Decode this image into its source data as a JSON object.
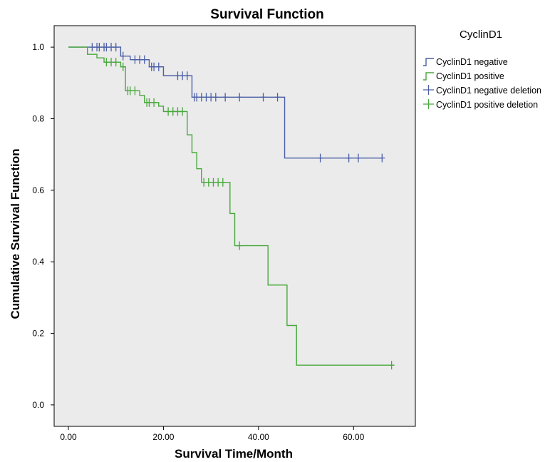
{
  "chart_data": {
    "type": "line",
    "subtype": "kaplan-meier",
    "title": "Survival Function",
    "xlabel": "Survival Time/Month",
    "ylabel": "Cumulative Survival Function",
    "xlim": [
      -3,
      73
    ],
    "ylim": [
      -0.06,
      1.06
    ],
    "x_ticks": [
      0,
      20,
      40,
      60
    ],
    "x_tick_labels": [
      "0.00",
      "20.00",
      "40.00",
      "60.00"
    ],
    "y_ticks": [
      0.0,
      0.2,
      0.4,
      0.6,
      0.8,
      1.0
    ],
    "y_tick_labels": [
      "0.0",
      "0.2",
      "0.4",
      "0.6",
      "0.8",
      "1.0"
    ],
    "grid": false,
    "plot_background": "#ebebeb",
    "legend": {
      "title": "CyclinD1",
      "position": "right",
      "entries": [
        {
          "label": "CyclinD1 negative",
          "marker": "step",
          "color": "#4a5fa5"
        },
        {
          "label": "CyclinD1 positive",
          "marker": "step",
          "color": "#48a83c"
        },
        {
          "label": "CyclinD1 negative deletion",
          "marker": "plus",
          "color": "#4a5fa5"
        },
        {
          "label": "CyclinD1 positive deletion",
          "marker": "plus",
          "color": "#48a83c"
        }
      ]
    },
    "series": [
      {
        "name": "CyclinD1 negative",
        "color": "#4a5fa5",
        "steps": [
          [
            0,
            1.0
          ],
          [
            11,
            0.975
          ],
          [
            13,
            0.965
          ],
          [
            17,
            0.945
          ],
          [
            20,
            0.92
          ],
          [
            26,
            0.86
          ],
          [
            45.5,
            0.69
          ],
          [
            66,
            0.69
          ]
        ],
        "censored": [
          [
            5,
            1.0
          ],
          [
            6,
            1.0
          ],
          [
            6.5,
            1.0
          ],
          [
            7.5,
            1.0
          ],
          [
            8,
            1.0
          ],
          [
            9,
            1.0
          ],
          [
            10,
            1.0
          ],
          [
            11.5,
            0.975
          ],
          [
            14,
            0.965
          ],
          [
            15,
            0.965
          ],
          [
            16,
            0.965
          ],
          [
            17.5,
            0.945
          ],
          [
            18,
            0.945
          ],
          [
            19,
            0.945
          ],
          [
            23,
            0.92
          ],
          [
            24,
            0.92
          ],
          [
            25,
            0.92
          ],
          [
            26.5,
            0.86
          ],
          [
            27,
            0.86
          ],
          [
            28,
            0.86
          ],
          [
            29,
            0.86
          ],
          [
            30,
            0.86
          ],
          [
            31,
            0.86
          ],
          [
            33,
            0.86
          ],
          [
            36,
            0.86
          ],
          [
            41,
            0.86
          ],
          [
            44,
            0.86
          ],
          [
            53,
            0.69
          ],
          [
            59,
            0.69
          ],
          [
            61,
            0.69
          ],
          [
            66,
            0.69
          ]
        ]
      },
      {
        "name": "CyclinD1 positive",
        "color": "#48a83c",
        "steps": [
          [
            0,
            1.0
          ],
          [
            4,
            0.98
          ],
          [
            6,
            0.97
          ],
          [
            7.5,
            0.958
          ],
          [
            11,
            0.945
          ],
          [
            12,
            0.878
          ],
          [
            15,
            0.865
          ],
          [
            16,
            0.845
          ],
          [
            19,
            0.835
          ],
          [
            20,
            0.82
          ],
          [
            25,
            0.755
          ],
          [
            26,
            0.705
          ],
          [
            27,
            0.66
          ],
          [
            28,
            0.622
          ],
          [
            34,
            0.535
          ],
          [
            35,
            0.445
          ],
          [
            42,
            0.335
          ],
          [
            46,
            0.222
          ],
          [
            48,
            0.111
          ],
          [
            68,
            0.111
          ]
        ],
        "censored": [
          [
            8,
            0.958
          ],
          [
            9,
            0.958
          ],
          [
            10,
            0.958
          ],
          [
            11.5,
            0.945
          ],
          [
            12.5,
            0.878
          ],
          [
            13,
            0.878
          ],
          [
            14,
            0.878
          ],
          [
            16.5,
            0.845
          ],
          [
            17,
            0.845
          ],
          [
            18,
            0.845
          ],
          [
            21,
            0.82
          ],
          [
            22,
            0.82
          ],
          [
            23,
            0.82
          ],
          [
            24,
            0.82
          ],
          [
            28.5,
            0.622
          ],
          [
            29.5,
            0.622
          ],
          [
            30.5,
            0.622
          ],
          [
            31.5,
            0.622
          ],
          [
            32.5,
            0.622
          ],
          [
            36,
            0.445
          ],
          [
            68,
            0.111
          ]
        ]
      }
    ]
  }
}
